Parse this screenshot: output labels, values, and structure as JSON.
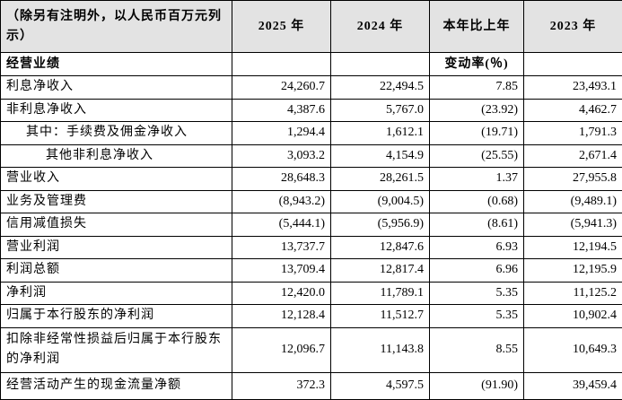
{
  "table": {
    "header": [
      "（除另有注明外，以人民币百万元列示）",
      "2025 年",
      "2024 年",
      "本年比上年",
      "2023 年"
    ],
    "section": {
      "label": "经营业绩",
      "change_label": "变动率(％)"
    },
    "rows": [
      [
        "利息净收入",
        "24,260.7",
        "22,494.5",
        "7.85",
        "23,493.1"
      ],
      [
        "非利息净收入",
        "4,387.6",
        "5,767.0",
        "(23.92)",
        "4,462.7"
      ],
      [
        "其中：手续费及佣金净收入",
        "1,294.4",
        "1,612.1",
        "(19.71)",
        "1,791.3"
      ],
      [
        "其他非利息净收入",
        "3,093.2",
        "4,154.9",
        "(25.55)",
        "2,671.4"
      ],
      [
        "营业收入",
        "28,648.3",
        "28,261.5",
        "1.37",
        "27,955.8"
      ],
      [
        "业务及管理费",
        "(8,943.2)",
        "(9,004.5)",
        "(0.68)",
        "(9,489.1)"
      ],
      [
        "信用减值损失",
        "(5,444.1)",
        "(5,956.9)",
        "(8.61)",
        "(5,941.3)"
      ],
      [
        "营业利润",
        "13,737.7",
        "12,847.6",
        "6.93",
        "12,194.5"
      ],
      [
        "利润总额",
        "13,709.4",
        "12,817.4",
        "6.96",
        "12,195.9"
      ],
      [
        "净利润",
        "12,420.0",
        "11,789.1",
        "5.35",
        "11,125.2"
      ],
      [
        "归属于本行股东的净利润",
        "12,128.4",
        "11,512.7",
        "5.35",
        "10,902.4"
      ],
      [
        "扣除非经常性损益后归属于本行股东的净利润",
        "12,096.7",
        "11,143.8",
        "8.55",
        "10,649.3"
      ],
      [
        "经营活动产生的现金流量净额",
        "372.3",
        "4,597.5",
        "(91.90)",
        "39,459.4"
      ]
    ]
  }
}
